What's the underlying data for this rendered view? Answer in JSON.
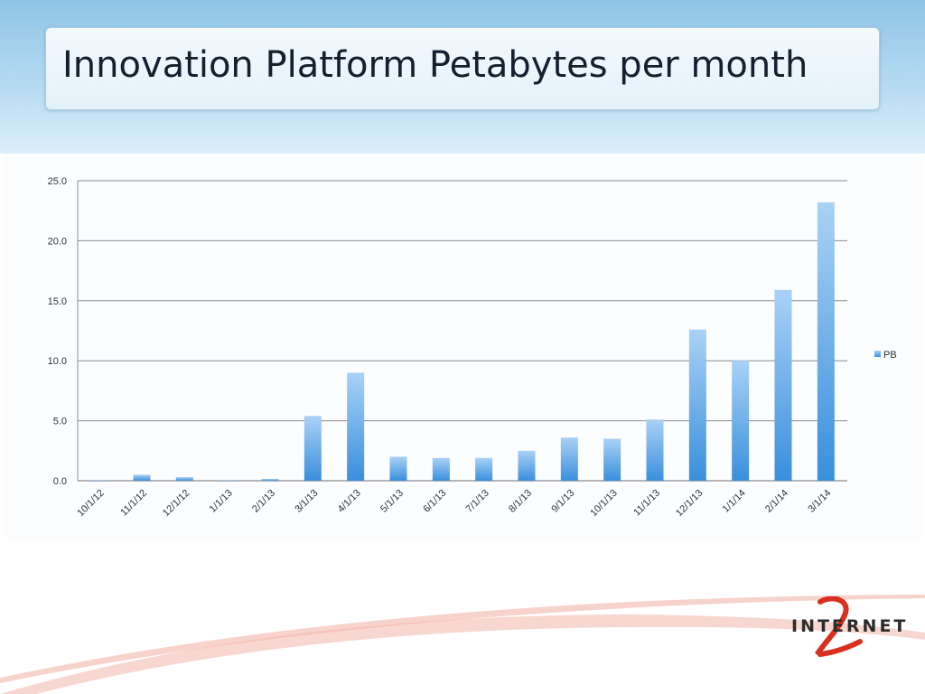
{
  "slide": {
    "title": "Innovation Platform Petabytes per month"
  },
  "logo": {
    "text": "INTERNET",
    "numeral": "2"
  },
  "colors": {
    "bar_top": "#a9d2f6",
    "bar_bottom": "#3a8fdc",
    "gridline": "#8c8c8c",
    "title_text": "#14202e"
  },
  "chart_data": {
    "type": "bar",
    "title": "",
    "xlabel": "",
    "ylabel": "",
    "ylim": [
      0,
      25
    ],
    "yticks": [
      "0.0",
      "5.0",
      "10.0",
      "15.0",
      "20.0",
      "25.0"
    ],
    "ytick_values": [
      0,
      5,
      10,
      15,
      20,
      25
    ],
    "grid": true,
    "legend_position": "right",
    "categories": [
      "10/1/12",
      "11/1/12",
      "12/1/12",
      "1/1/13",
      "2/1/13",
      "3/1/13",
      "4/1/13",
      "5/1/13",
      "6/1/13",
      "7/1/13",
      "8/1/13",
      "9/1/13",
      "10/1/13",
      "11/1/13",
      "12/1/13",
      "1/1/14",
      "2/1/14",
      "3/1/14"
    ],
    "series": [
      {
        "name": "PB",
        "values": [
          0.05,
          0.5,
          0.3,
          0.05,
          0.15,
          5.4,
          9.0,
          2.0,
          1.9,
          1.9,
          2.5,
          3.6,
          3.5,
          5.1,
          12.6,
          10.0,
          15.9,
          23.2
        ]
      }
    ]
  }
}
